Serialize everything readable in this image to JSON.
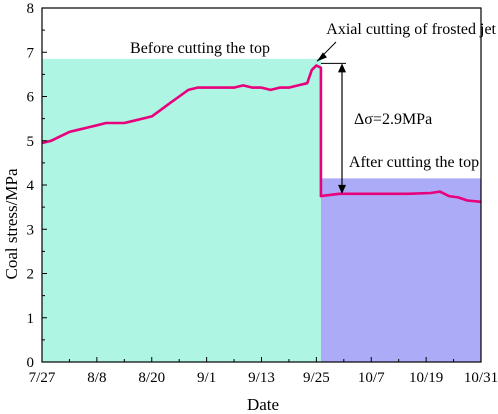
{
  "chart_data": {
    "type": "line",
    "xlabel": "Date",
    "ylabel": "Coal stress/MPa",
    "ylim": [
      0,
      8
    ],
    "yticks": [
      0,
      1,
      2,
      3,
      4,
      5,
      6,
      7,
      8
    ],
    "xlim": [
      "7/27",
      "10/31"
    ],
    "xticks": [
      "7/27",
      "8/8",
      "8/20",
      "9/1",
      "9/13",
      "9/25",
      "10/7",
      "10/19",
      "10/31"
    ],
    "grid": false,
    "line_color": "#e8007c",
    "regions": [
      {
        "label": "Before cutting the top",
        "x_start": "7/27",
        "x_end": "9/26",
        "y_top": 6.85,
        "color": "#aef5e3"
      },
      {
        "label": "After cutting the top",
        "x_start": "9/26",
        "x_end": "10/31",
        "y_top": 4.15,
        "color": "#acabf7"
      }
    ],
    "annotations": {
      "event": "Axial cutting of frosted jet",
      "delta": "Δσ=2.9MPa",
      "delta_range": [
        3.8,
        6.75
      ]
    },
    "series": [
      {
        "x": [
          "7/27",
          "7/29",
          "7/31",
          "8/2",
          "8/4",
          "8/6",
          "8/8",
          "8/10",
          "8/12",
          "8/14",
          "8/16",
          "8/18",
          "8/20",
          "8/22",
          "8/24",
          "8/26",
          "8/28",
          "8/30",
          "9/1",
          "9/3",
          "9/5",
          "9/7",
          "9/9",
          "9/11",
          "9/13",
          "9/15",
          "9/17",
          "9/19",
          "9/21",
          "9/23",
          "9/24",
          "9/25",
          "9/26",
          "9/26",
          "9/30",
          "10/5",
          "10/10",
          "10/15",
          "10/20",
          "10/22",
          "10/24",
          "10/26",
          "10/28",
          "10/31"
        ],
        "y": [
          4.95,
          5.0,
          5.1,
          5.2,
          5.25,
          5.3,
          5.35,
          5.4,
          5.4,
          5.4,
          5.45,
          5.5,
          5.55,
          5.7,
          5.85,
          6.0,
          6.15,
          6.2,
          6.2,
          6.2,
          6.2,
          6.2,
          6.25,
          6.2,
          6.2,
          6.15,
          6.2,
          6.2,
          6.25,
          6.3,
          6.6,
          6.7,
          6.65,
          3.75,
          3.8,
          3.8,
          3.8,
          3.8,
          3.82,
          3.85,
          3.75,
          3.72,
          3.65,
          3.62
        ]
      }
    ]
  }
}
